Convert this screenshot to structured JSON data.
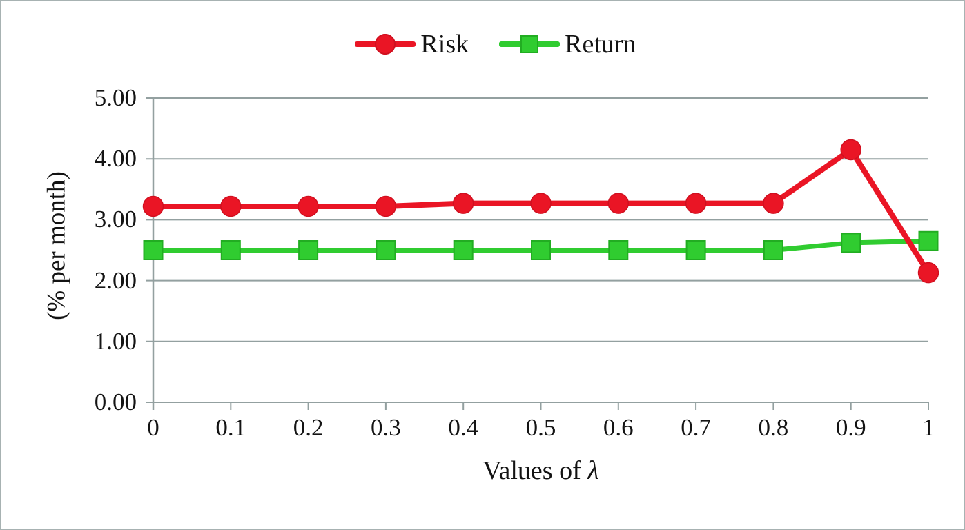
{
  "frame": {
    "background": "#ffffff",
    "border_color": "#a7b2b2"
  },
  "legend": {
    "position": "top-center",
    "items": [
      {
        "label": "Risk",
        "marker": "circle",
        "color": "#ea1525",
        "marker_edge": "#d01020"
      },
      {
        "label": "Return",
        "marker": "square",
        "color": "#30cc30",
        "marker_edge": "#22ad22"
      }
    ]
  },
  "chart_data": {
    "type": "line",
    "title": "",
    "xlabel_prefix": "Values of ",
    "xlabel_symbol": "λ",
    "ylabel": "(% per month)",
    "x": [
      0,
      0.1,
      0.2,
      0.3,
      0.4,
      0.5,
      0.6,
      0.7,
      0.8,
      0.9,
      1
    ],
    "xtick_labels": [
      "0",
      "0.1",
      "0.2",
      "0.3",
      "0.4",
      "0.5",
      "0.6",
      "0.7",
      "0.8",
      "0.9",
      "1"
    ],
    "xlim": [
      0,
      1
    ],
    "ylim": [
      0,
      5
    ],
    "ytick_values": [
      0,
      1,
      2,
      3,
      4,
      5
    ],
    "ytick_labels": [
      "0.00",
      "1.00",
      "2.00",
      "3.00",
      "4.00",
      "5.00"
    ],
    "grid": "horizontal",
    "gridline_color": "#93a0a0",
    "axis_color": "#93a0a0",
    "legend_position": "top-center",
    "series": [
      {
        "name": "Risk",
        "color": "#ea1525",
        "marker": "circle",
        "marker_edge": "#d01020",
        "values": [
          3.22,
          3.22,
          3.22,
          3.22,
          3.27,
          3.27,
          3.27,
          3.27,
          3.27,
          4.15,
          2.13
        ]
      },
      {
        "name": "Return",
        "color": "#30cc30",
        "marker": "square",
        "marker_edge": "#22ad22",
        "values": [
          2.5,
          2.5,
          2.5,
          2.5,
          2.5,
          2.5,
          2.5,
          2.5,
          2.5,
          2.62,
          2.65
        ]
      }
    ]
  }
}
